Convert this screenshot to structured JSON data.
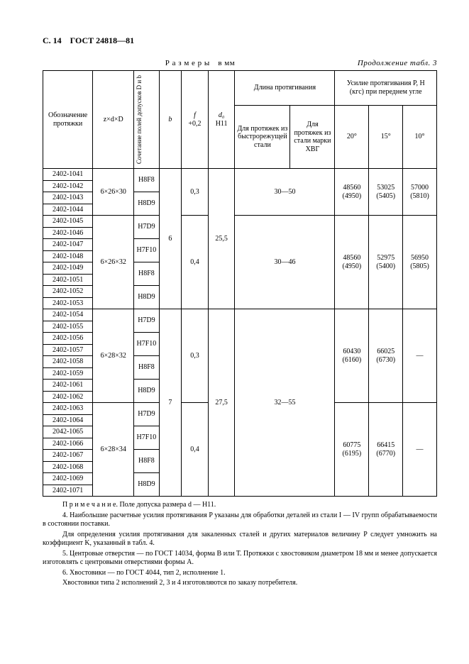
{
  "header": "С. 14 ГОСТ 24818—81",
  "caption_left": "Р а з м е р ы в мм",
  "caption_right": "Продолжение табл. 3",
  "columns": {
    "c1": "Обозначение протяжки",
    "c2": "z×d×D",
    "c3": "Сочетание полей допусков D и b",
    "c4": "b",
    "c5": "f\n+0,2",
    "c5a": "f",
    "c5b": "+0,2",
    "c6": "d₀\nH11",
    "c6a": "d₀",
    "c6b": "H11",
    "group_len": "Длина протягивания",
    "c7": "Для протяжек из быстрорежущей стали",
    "c8": "Для протяжек из стали марки ХВГ",
    "group_force": "Усилие протягивания P, H (кгс) при переднем угле",
    "c9": "20°",
    "c10": "15°",
    "c11": "10°"
  },
  "bodies": [
    {
      "ids": [
        "2402-1041",
        "2402-1042",
        "2402-1043",
        "2402-1044"
      ],
      "zdD": "6×26×30",
      "fits": [
        "H8F8",
        "H8D9"
      ],
      "f": "0,3",
      "len": "30—50",
      "forces": [
        "48560 (4950)",
        "53025 (5405)",
        "57000 (5810)"
      ]
    },
    {
      "ids": [
        "2402-1045",
        "2402-1046",
        "2402-1047",
        "2402-1048",
        "2402-1049",
        "2402-1051",
        "2402-1052",
        "2402-1053"
      ],
      "zdD": "6×26×32",
      "fits": [
        "H7D9",
        "H7F10",
        "H8F8",
        "H8D9"
      ],
      "f": "0,4",
      "len": "30—46",
      "forces": [
        "48560 (4950)",
        "52975 (5400)",
        "56950 (5805)"
      ]
    },
    {
      "ids": [
        "2402-1054",
        "2402-1055",
        "2402-1056",
        "2402-1057",
        "2402-1058",
        "2402-1059",
        "2402-1061",
        "2402-1062"
      ],
      "zdD": "6×28×32",
      "fits": [
        "H7D9",
        "H7F10",
        "H8F8",
        "H8D9"
      ],
      "f": "0,3",
      "len": "32—55",
      "forces": [
        "60430 (6160)",
        "66025 (6730)",
        "—"
      ]
    },
    {
      "ids": [
        "2402-1063",
        "2402-1064",
        "2042-1065",
        "2402-1066",
        "2402-1067",
        "2402-1068",
        "2402-1069",
        "2402-1071"
      ],
      "zdD": "6×28×34",
      "fits": [
        "H7D9",
        "H7F10",
        "H8F8",
        "H8D9"
      ],
      "f": "0,4",
      "forces": [
        "60775 (6195)",
        "66415 (6770)",
        "—"
      ]
    }
  ],
  "b_val": "6",
  "d0_val": "25,5",
  "b_val2": "7",
  "d0_val2": "27,5",
  "note": "П р и м е ч а н и е. Поле допуска размера d — H11.",
  "p1": "4. Наибольшие расчетные усилия протягивания P указаны для обработки деталей из стали I — IV групп обрабатываемости в состоянии поставки.",
  "p2": "Для определения усилия протягивания для закаленных сталей и других материалов величину P следует умножить на коэффициент K, указанный в табл. 4.",
  "p3": "5. Центровые отверстия — по ГОСТ 14034, форма В или Т. Протяжки с хвостовиком диаметром 18 мм и менее допускается изготовлять с центровыми отверстиями формы А.",
  "p4": "6. Хвостовики — по ГОСТ 4044, тип 2, исполнение 1.",
  "p5": "Хвостовики типа 2 исполнений 2, 3 и 4 изготовляются по заказу потребителя."
}
